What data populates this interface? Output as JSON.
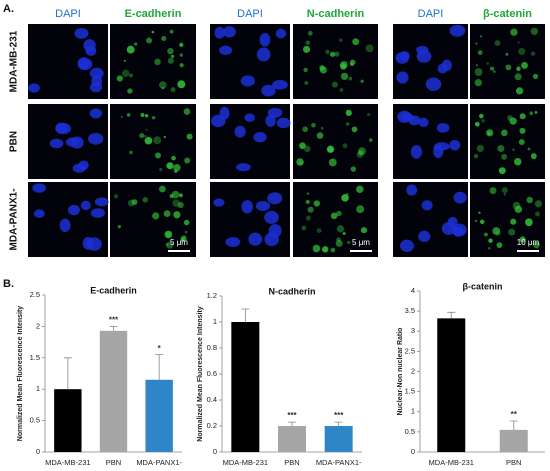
{
  "panel_a": {
    "label": "A.",
    "groups": [
      {
        "stains": [
          "DAPI",
          "E-cadherin"
        ],
        "scale_bar": "5 μm"
      },
      {
        "stains": [
          "DAPI",
          "N-cadherin"
        ],
        "scale_bar": "5 μm"
      },
      {
        "stains": [
          "DAPI",
          "β-catenin"
        ],
        "scale_bar": "10 μm"
      }
    ],
    "rows": [
      "MDA-MB-231",
      "PBN",
      "MDA-PANX1-"
    ]
  },
  "panel_b": {
    "label": "B."
  },
  "chart_data": [
    {
      "type": "bar",
      "title": "E-cadherin",
      "y_label": "Normalized Mean Fluorescence Intensity",
      "categories": [
        "MDA-MB-231",
        "PBN",
        "MDA-PANX1-"
      ],
      "values": [
        1.0,
        1.93,
        1.15
      ],
      "errors": [
        0.5,
        0.07,
        0.4
      ],
      "colors": [
        "#000000",
        "#a6a6a6",
        "#2e86c8"
      ],
      "significance": [
        null,
        "***",
        "*"
      ],
      "ylim": [
        0,
        2.5
      ],
      "yticks": [
        0,
        0.5,
        1,
        1.5,
        2,
        2.5
      ]
    },
    {
      "type": "bar",
      "title": "N-cadherin",
      "y_label": "Normalized Mean Fluorescence Intensity",
      "categories": [
        "MDA-MB-231",
        "PBN",
        "MDA-PANX1-"
      ],
      "values": [
        1.0,
        0.2,
        0.2
      ],
      "errors": [
        0.1,
        0.03,
        0.03
      ],
      "colors": [
        "#000000",
        "#a6a6a6",
        "#2e86c8"
      ],
      "significance": [
        null,
        "***",
        "***"
      ],
      "ylim": [
        0,
        1.2
      ],
      "yticks": [
        0,
        0.2,
        0.4,
        0.6,
        0.8,
        1,
        1.2
      ]
    },
    {
      "type": "bar",
      "title": "β-catenin",
      "y_label": "Nuclear-Non nuclear Ratio",
      "categories": [
        "MDA-MB-231",
        "PBN"
      ],
      "values": [
        3.32,
        0.55
      ],
      "errors": [
        0.15,
        0.22
      ],
      "colors": [
        "#000000",
        "#a6a6a6"
      ],
      "significance": [
        null,
        "**"
      ],
      "ylim": [
        0,
        4
      ],
      "yticks": [
        0,
        0.5,
        1,
        1.5,
        2,
        2.5,
        3,
        3.5,
        4
      ]
    }
  ]
}
